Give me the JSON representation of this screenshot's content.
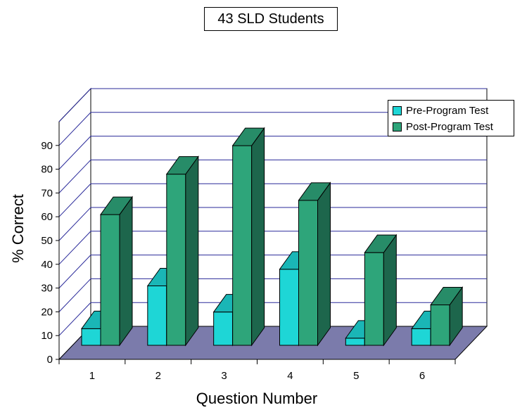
{
  "chart_data": {
    "type": "bar",
    "title": "43 SLD Students",
    "xlabel": "Question Number",
    "ylabel": "% Correct",
    "categories": [
      "1",
      "2",
      "3",
      "4",
      "5",
      "6"
    ],
    "yticks": [
      "0",
      "10",
      "20",
      "30",
      "40",
      "50",
      "60",
      "70",
      "80",
      "90"
    ],
    "ylim": [
      0,
      100
    ],
    "grid": true,
    "style": "3d-clustered-column",
    "legend_position": "right",
    "series": [
      {
        "name": "Pre-Program Test",
        "color": "#1ed6d6",
        "values": [
          7,
          25,
          14,
          32,
          3,
          7
        ]
      },
      {
        "name": "Post-Program Test",
        "color": "#2ea57a",
        "values": [
          55,
          72,
          84,
          61,
          39,
          17
        ]
      }
    ],
    "floor_color": "#7b7bab"
  }
}
